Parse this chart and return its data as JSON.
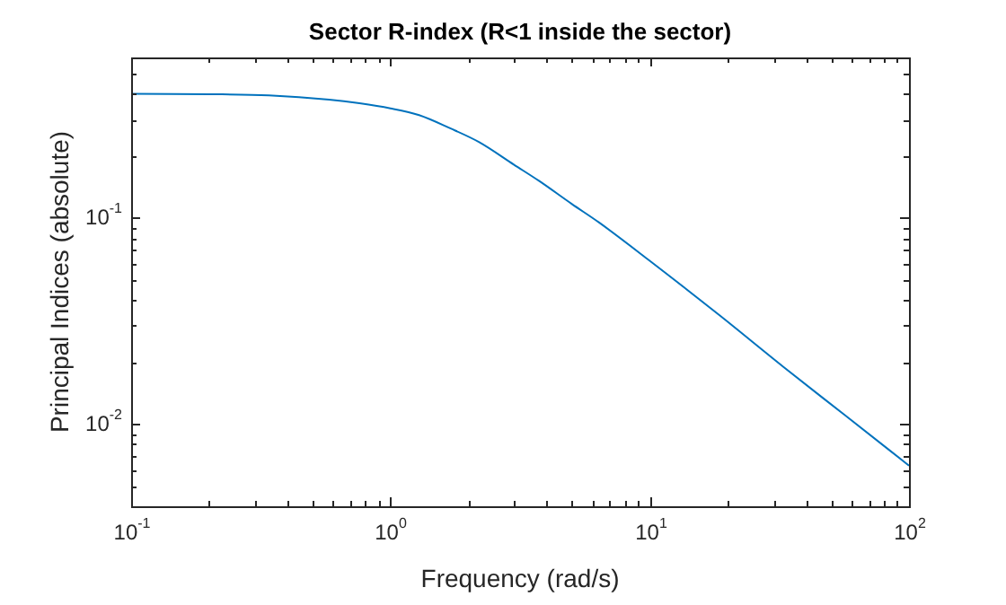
{
  "chart_data": {
    "type": "line",
    "title": "Sector R-index (R<1 inside the sector)",
    "xlabel": "Frequency (rad/s)",
    "ylabel": "Principal Indices (absolute)",
    "log": "xy",
    "grid": false,
    "legend": false,
    "marker": "none",
    "line_style": "solid",
    "xlim": [
      0.1,
      100
    ],
    "ylim": [
      0.004,
      0.6
    ],
    "xticks": [
      {
        "value": 0.1,
        "label": "10$^{-1}$"
      },
      {
        "value": 0.2,
        "label": null
      },
      {
        "value": 0.3,
        "label": null
      },
      {
        "value": 0.4,
        "label": null
      },
      {
        "value": 0.5,
        "label": null
      },
      {
        "value": 0.6,
        "label": null
      },
      {
        "value": 0.7,
        "label": null
      },
      {
        "value": 0.8,
        "label": null
      },
      {
        "value": 0.9,
        "label": null
      },
      {
        "value": 1,
        "label": "10$^{0}$"
      },
      {
        "value": 2,
        "label": null
      },
      {
        "value": 3,
        "label": null
      },
      {
        "value": 4,
        "label": null
      },
      {
        "value": 5,
        "label": null
      },
      {
        "value": 6,
        "label": null
      },
      {
        "value": 7,
        "label": null
      },
      {
        "value": 8,
        "label": null
      },
      {
        "value": 9,
        "label": null
      },
      {
        "value": 10,
        "label": "10$^{1}$"
      },
      {
        "value": 20,
        "label": null
      },
      {
        "value": 30,
        "label": null
      },
      {
        "value": 40,
        "label": null
      },
      {
        "value": 50,
        "label": null
      },
      {
        "value": 60,
        "label": null
      },
      {
        "value": 70,
        "label": null
      },
      {
        "value": 80,
        "label": null
      },
      {
        "value": 90,
        "label": null
      },
      {
        "value": 100,
        "label": "10$^{2}$"
      }
    ],
    "yticks": [
      {
        "value": 0.004,
        "label": null
      },
      {
        "value": 0.005,
        "label": null
      },
      {
        "value": 0.006,
        "label": null
      },
      {
        "value": 0.007,
        "label": null
      },
      {
        "value": 0.008,
        "label": null
      },
      {
        "value": 0.009,
        "label": null
      },
      {
        "value": 0.01,
        "label": "10$^{-2}$"
      },
      {
        "value": 0.02,
        "label": null
      },
      {
        "value": 0.03,
        "label": null
      },
      {
        "value": 0.04,
        "label": null
      },
      {
        "value": 0.05,
        "label": null
      },
      {
        "value": 0.06,
        "label": null
      },
      {
        "value": 0.07,
        "label": null
      },
      {
        "value": 0.08,
        "label": null
      },
      {
        "value": 0.09,
        "label": null
      },
      {
        "value": 0.1,
        "label": "10$^{-1}$"
      },
      {
        "value": 0.2,
        "label": null
      },
      {
        "value": 0.3,
        "label": null
      },
      {
        "value": 0.4,
        "label": null
      },
      {
        "value": 0.5,
        "label": null
      },
      {
        "value": 0.6,
        "label": null
      }
    ],
    "x": [
      0.1,
      0.2,
      0.34,
      0.58,
      0.76,
      1,
      1.29,
      1.7,
      2.2,
      3,
      3.75,
      5,
      6.38,
      10,
      18.6,
      32.7,
      56.9,
      100
    ],
    "series": [
      {
        "color": "#0072bd",
        "values": [
          0.4,
          0.398,
          0.393,
          0.375,
          0.36,
          0.34,
          0.315,
          0.272,
          0.233,
          0.181,
          0.151,
          0.117,
          0.095,
          0.062,
          0.0337,
          0.019,
          0.011,
          0.0063
        ]
      }
    ]
  }
}
